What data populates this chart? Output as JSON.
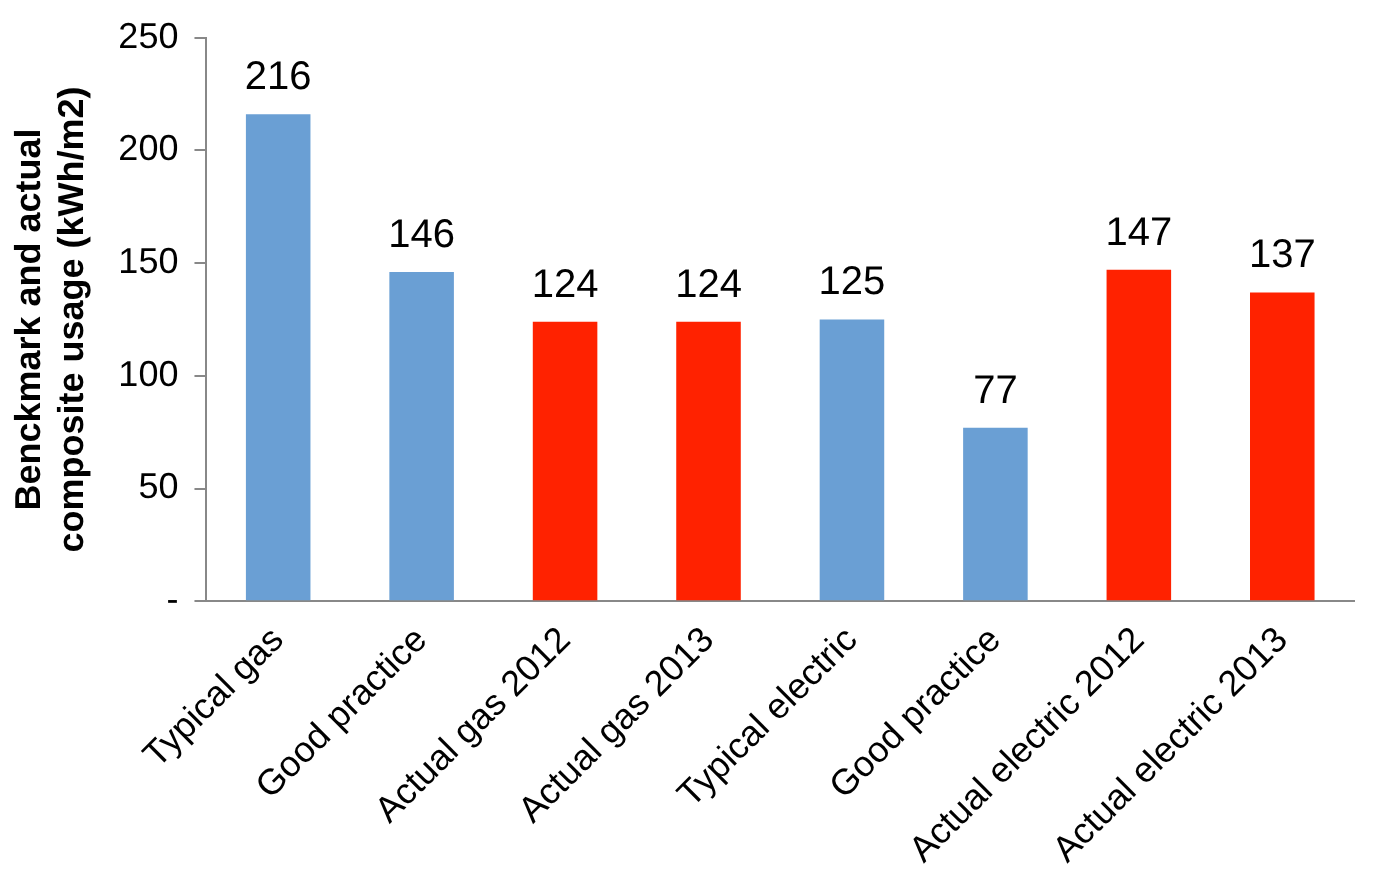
{
  "chart_data": {
    "type": "bar",
    "ylabel": "Benckmark and actual composite usage (kWh/m2)",
    "categories": [
      "Typical gas",
      "Good practice",
      "Actual gas 2012",
      "Actual gas 2013",
      "Typical electric",
      "Good practice",
      "Actual electric 2012",
      "Actual electric 2013"
    ],
    "values": [
      216,
      146,
      124,
      124,
      125,
      77,
      147,
      137
    ],
    "colors": [
      "#6a9fd4",
      "#6a9fd4",
      "#ff2200",
      "#ff2200",
      "#6a9fd4",
      "#6a9fd4",
      "#ff2200",
      "#ff2200"
    ],
    "ylim": [
      0,
      250
    ],
    "yticks": [
      {
        "value": 0,
        "label": "-"
      },
      50,
      100,
      150,
      200,
      250
    ],
    "grid": false,
    "data_labels": true
  }
}
